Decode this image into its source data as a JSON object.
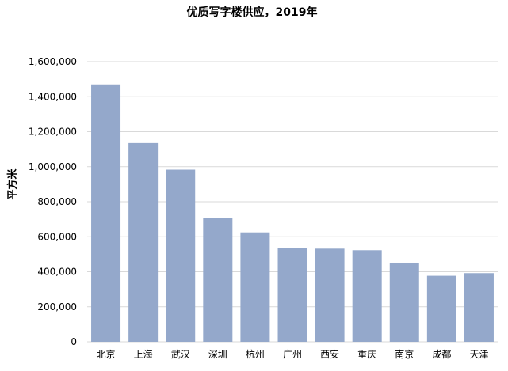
{
  "chart_data": {
    "type": "bar",
    "title": "优质写字楼供应，2019年",
    "ylabel": "平方米",
    "xlabel": "",
    "categories": [
      "北京",
      "上海",
      "武汉",
      "深圳",
      "杭州",
      "广州",
      "西安",
      "重庆",
      "南京",
      "成都",
      "天津"
    ],
    "values": [
      1470000,
      1135000,
      983000,
      708000,
      625000,
      535000,
      532000,
      523000,
      452000,
      377000,
      392000
    ],
    "ylim": [
      0,
      1600000
    ],
    "yticks": [
      0,
      200000,
      400000,
      600000,
      800000,
      1000000,
      1200000,
      1400000,
      1600000
    ],
    "ytick_labels": [
      "0",
      "200,000",
      "400,000",
      "600,000",
      "800,000",
      "1,000,000",
      "1,200,000",
      "1,400,000",
      "1,600,000"
    ],
    "grid": true,
    "legend": "none",
    "bar_color": "#94a8cb",
    "grid_color": "#d9d9d9"
  }
}
